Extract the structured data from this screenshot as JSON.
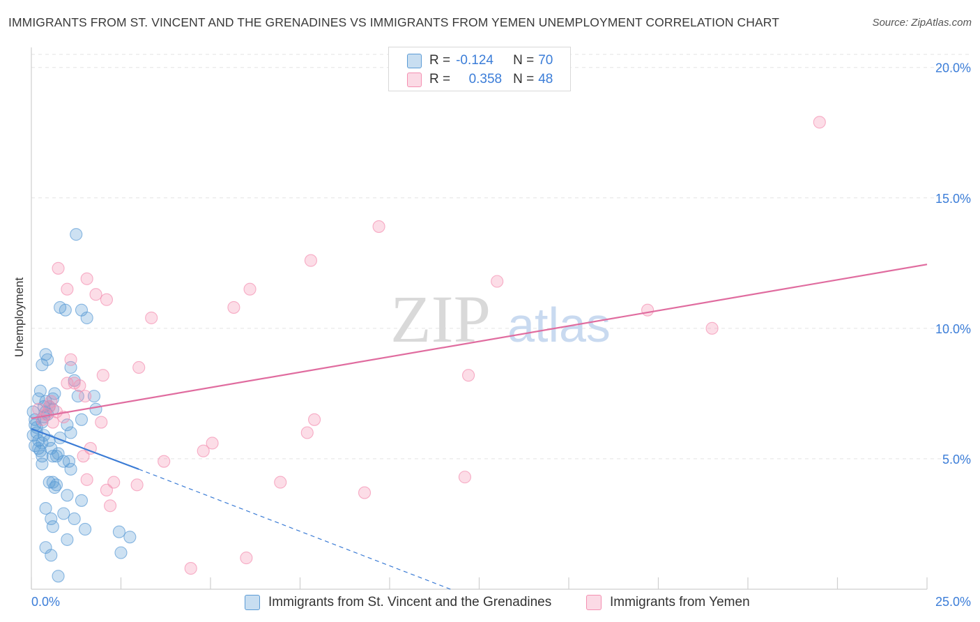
{
  "title": "IMMIGRANTS FROM ST. VINCENT AND THE GRENADINES VS IMMIGRANTS FROM YEMEN UNEMPLOYMENT CORRELATION CHART",
  "source": "Source: ZipAtlas.com",
  "watermark": {
    "zip": "ZIP",
    "atlas": "atlas"
  },
  "legend": {
    "r_label": "R =",
    "n_label": "N =",
    "series": [
      {
        "r": "-0.124",
        "n": "70",
        "color": "#5b9bd5"
      },
      {
        "r": "0.358",
        "n": "48",
        "color": "#f48fb1"
      }
    ]
  },
  "chart_data": {
    "type": "scatter",
    "title": "IMMIGRANTS FROM ST. VINCENT AND THE GRENADINES VS IMMIGRANTS FROM YEMEN UNEMPLOYMENT CORRELATION CHART",
    "xlabel": "",
    "ylabel": "Unemployment",
    "xlim": [
      0,
      25
    ],
    "ylim": [
      0,
      20.5
    ],
    "x_tick_labels": [
      "0.0%",
      "25.0%"
    ],
    "y_ticks": [
      5,
      10,
      15,
      20
    ],
    "y_tick_labels": [
      "5.0%",
      "10.0%",
      "15.0%",
      "20.0%"
    ],
    "grid": true,
    "legend_position": "top-center",
    "series": [
      {
        "name": "Immigrants from St. Vincent and the Grenadines",
        "color": "#5b9bd5",
        "line_color": "#3a7bd5",
        "trend": {
          "x": [
            0,
            3.0
          ],
          "y": [
            6.15,
            4.6
          ],
          "dash_to": [
            11.7,
            0
          ]
        },
        "points": [
          [
            0.05,
            6.8
          ],
          [
            0.1,
            6.5
          ],
          [
            0.1,
            6.3
          ],
          [
            0.15,
            6.0
          ],
          [
            0.05,
            5.9
          ],
          [
            0.2,
            5.7
          ],
          [
            0.1,
            5.5
          ],
          [
            0.3,
            5.6
          ],
          [
            0.2,
            5.4
          ],
          [
            0.25,
            5.3
          ],
          [
            0.3,
            6.4
          ],
          [
            0.35,
            6.6
          ],
          [
            0.4,
            6.8
          ],
          [
            0.5,
            7.0
          ],
          [
            0.2,
            7.3
          ],
          [
            0.25,
            7.6
          ],
          [
            0.4,
            7.2
          ],
          [
            0.6,
            7.3
          ],
          [
            0.35,
            7.0
          ],
          [
            0.45,
            6.7
          ],
          [
            0.3,
            8.6
          ],
          [
            0.4,
            9.0
          ],
          [
            0.45,
            8.8
          ],
          [
            0.6,
            6.9
          ],
          [
            0.5,
            5.7
          ],
          [
            0.55,
            5.4
          ],
          [
            0.6,
            5.1
          ],
          [
            0.3,
            5.1
          ],
          [
            0.3,
            4.8
          ],
          [
            0.7,
            5.1
          ],
          [
            0.75,
            5.2
          ],
          [
            0.8,
            5.8
          ],
          [
            0.9,
            4.9
          ],
          [
            1.0,
            6.3
          ],
          [
            1.1,
            6.0
          ],
          [
            1.3,
            7.4
          ],
          [
            1.4,
            6.5
          ],
          [
            1.2,
            8.0
          ],
          [
            1.1,
            8.5
          ],
          [
            0.8,
            10.8
          ],
          [
            0.65,
            7.5
          ],
          [
            0.95,
            10.7
          ],
          [
            1.4,
            10.7
          ],
          [
            1.55,
            10.4
          ],
          [
            1.25,
            13.6
          ],
          [
            1.75,
            7.4
          ],
          [
            1.8,
            6.9
          ],
          [
            1.05,
            4.9
          ],
          [
            1.1,
            4.6
          ],
          [
            0.5,
            4.1
          ],
          [
            0.6,
            4.1
          ],
          [
            0.65,
            3.9
          ],
          [
            0.7,
            4.0
          ],
          [
            0.4,
            3.1
          ],
          [
            0.55,
            2.7
          ],
          [
            0.6,
            2.4
          ],
          [
            0.9,
            2.9
          ],
          [
            1.0,
            3.6
          ],
          [
            1.2,
            2.7
          ],
          [
            1.4,
            3.4
          ],
          [
            0.4,
            1.6
          ],
          [
            0.55,
            1.3
          ],
          [
            1.0,
            1.9
          ],
          [
            1.5,
            2.3
          ],
          [
            2.45,
            2.2
          ],
          [
            2.75,
            2.0
          ],
          [
            2.5,
            1.4
          ],
          [
            0.75,
            0.5
          ],
          [
            0.15,
            6.2
          ],
          [
            0.35,
            5.9
          ]
        ]
      },
      {
        "name": "Immigrants from Yemen",
        "color": "#f48fb1",
        "line_color": "#e06c9f",
        "trend": {
          "x": [
            0,
            25
          ],
          "y": [
            6.55,
            12.45
          ]
        },
        "points": [
          [
            0.2,
            6.9
          ],
          [
            0.3,
            6.5
          ],
          [
            0.4,
            6.7
          ],
          [
            0.5,
            7.0
          ],
          [
            0.6,
            6.4
          ],
          [
            0.7,
            6.8
          ],
          [
            0.9,
            6.6
          ],
          [
            0.55,
            7.2
          ],
          [
            1.0,
            7.9
          ],
          [
            1.1,
            8.8
          ],
          [
            1.2,
            7.9
          ],
          [
            1.35,
            7.8
          ],
          [
            1.5,
            7.4
          ],
          [
            1.45,
            5.1
          ],
          [
            1.65,
            5.4
          ],
          [
            1.55,
            4.2
          ],
          [
            2.0,
            8.2
          ],
          [
            2.1,
            11.1
          ],
          [
            1.8,
            11.3
          ],
          [
            1.55,
            11.9
          ],
          [
            1.0,
            11.5
          ],
          [
            0.75,
            12.3
          ],
          [
            1.95,
            6.4
          ],
          [
            2.1,
            3.8
          ],
          [
            2.2,
            3.2
          ],
          [
            2.3,
            4.1
          ],
          [
            2.95,
            4.0
          ],
          [
            3.0,
            8.5
          ],
          [
            3.35,
            10.4
          ],
          [
            3.7,
            4.9
          ],
          [
            4.45,
            0.8
          ],
          [
            4.8,
            5.3
          ],
          [
            5.05,
            5.6
          ],
          [
            5.65,
            10.8
          ],
          [
            6.0,
            1.2
          ],
          [
            6.1,
            11.5
          ],
          [
            6.95,
            4.1
          ],
          [
            7.7,
            6.0
          ],
          [
            7.8,
            12.6
          ],
          [
            7.9,
            6.5
          ],
          [
            9.3,
            3.7
          ],
          [
            9.7,
            13.9
          ],
          [
            12.1,
            4.3
          ],
          [
            12.2,
            8.2
          ],
          [
            13.0,
            11.8
          ],
          [
            17.2,
            10.7
          ],
          [
            19.0,
            10.0
          ],
          [
            22.0,
            17.9
          ]
        ]
      }
    ]
  },
  "axes": {
    "y_title": "Unemployment",
    "x_min_label": "0.0%",
    "x_max_label": "25.0%"
  },
  "bottom_legend": [
    {
      "label": "Immigrants from St. Vincent and the Grenadines",
      "color": "#5b9bd5"
    },
    {
      "label": "Immigrants from Yemen",
      "color": "#f48fb1"
    }
  ]
}
